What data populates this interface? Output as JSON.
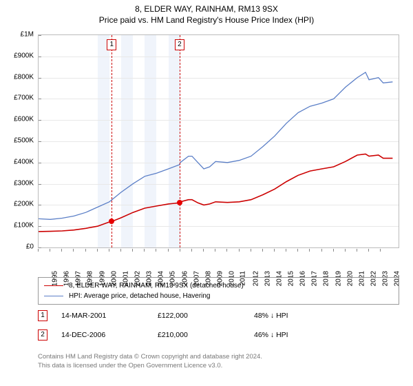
{
  "title_line1": "8, ELDER WAY, RAINHAM, RM13 9SX",
  "title_line2": "Price paid vs. HM Land Registry's House Price Index (HPI)",
  "chart": {
    "type": "line",
    "background_color": "#ffffff",
    "grid_color": "#e8e8e8",
    "axis_color": "#bbbbbb",
    "x_min": 1995,
    "x_max": 2025.5,
    "x_ticks": [
      1995,
      1996,
      1997,
      1998,
      1999,
      2000,
      2001,
      2002,
      2003,
      2004,
      2005,
      2006,
      2007,
      2008,
      2009,
      2010,
      2011,
      2012,
      2013,
      2014,
      2015,
      2016,
      2017,
      2018,
      2019,
      2020,
      2021,
      2022,
      2023,
      2024
    ],
    "y_min": 0,
    "y_max": 1000000,
    "y_ticks": [
      {
        "v": 0,
        "label": "£0"
      },
      {
        "v": 100000,
        "label": "£100K"
      },
      {
        "v": 200000,
        "label": "£200K"
      },
      {
        "v": 300000,
        "label": "£300K"
      },
      {
        "v": 400000,
        "label": "£400K"
      },
      {
        "v": 500000,
        "label": "£500K"
      },
      {
        "v": 600000,
        "label": "£600K"
      },
      {
        "v": 700000,
        "label": "£700K"
      },
      {
        "v": 800000,
        "label": "£800K"
      },
      {
        "v": 900000,
        "label": "£900K"
      },
      {
        "v": 1000000,
        "label": "£1M"
      }
    ],
    "alt_bands": {
      "color": "#f0f4fb",
      "years": [
        2000,
        2002,
        2004,
        2006
      ]
    },
    "series": [
      {
        "name": "price_paid",
        "label": "8, ELDER WAY, RAINHAM, RM13 9SX (detached house)",
        "color": "#cc0000",
        "line_width": 1.6,
        "points": [
          [
            1995,
            75000
          ],
          [
            1996,
            76000
          ],
          [
            1997,
            78000
          ],
          [
            1998,
            82000
          ],
          [
            1999,
            90000
          ],
          [
            2000,
            100000
          ],
          [
            2001,
            120000
          ],
          [
            2001.2,
            122000
          ],
          [
            2002,
            140000
          ],
          [
            2003,
            165000
          ],
          [
            2004,
            185000
          ],
          [
            2005,
            195000
          ],
          [
            2006,
            205000
          ],
          [
            2006.95,
            210000
          ],
          [
            2007,
            215000
          ],
          [
            2007.7,
            225000
          ],
          [
            2008,
            225000
          ],
          [
            2008.5,
            210000
          ],
          [
            2009,
            200000
          ],
          [
            2009.5,
            205000
          ],
          [
            2010,
            215000
          ],
          [
            2011,
            212000
          ],
          [
            2012,
            215000
          ],
          [
            2013,
            225000
          ],
          [
            2014,
            248000
          ],
          [
            2015,
            275000
          ],
          [
            2016,
            310000
          ],
          [
            2017,
            340000
          ],
          [
            2018,
            360000
          ],
          [
            2019,
            370000
          ],
          [
            2020,
            380000
          ],
          [
            2021,
            405000
          ],
          [
            2022,
            435000
          ],
          [
            2022.7,
            440000
          ],
          [
            2023,
            430000
          ],
          [
            2023.8,
            435000
          ],
          [
            2024.2,
            420000
          ],
          [
            2025,
            420000
          ]
        ]
      },
      {
        "name": "hpi",
        "label": "HPI: Average price, detached house, Havering",
        "color": "#5b7fc7",
        "line_width": 1.3,
        "points": [
          [
            1995,
            135000
          ],
          [
            1996,
            132000
          ],
          [
            1997,
            138000
          ],
          [
            1998,
            148000
          ],
          [
            1999,
            165000
          ],
          [
            2000,
            190000
          ],
          [
            2001,
            215000
          ],
          [
            2002,
            260000
          ],
          [
            2003,
            300000
          ],
          [
            2004,
            335000
          ],
          [
            2005,
            350000
          ],
          [
            2006,
            370000
          ],
          [
            2006.95,
            390000
          ],
          [
            2007,
            400000
          ],
          [
            2007.7,
            430000
          ],
          [
            2008,
            430000
          ],
          [
            2008.5,
            400000
          ],
          [
            2009,
            370000
          ],
          [
            2009.5,
            380000
          ],
          [
            2010,
            405000
          ],
          [
            2011,
            400000
          ],
          [
            2012,
            410000
          ],
          [
            2013,
            430000
          ],
          [
            2014,
            475000
          ],
          [
            2015,
            525000
          ],
          [
            2016,
            585000
          ],
          [
            2017,
            635000
          ],
          [
            2018,
            665000
          ],
          [
            2019,
            680000
          ],
          [
            2020,
            700000
          ],
          [
            2021,
            755000
          ],
          [
            2022,
            800000
          ],
          [
            2022.7,
            825000
          ],
          [
            2023,
            790000
          ],
          [
            2023.8,
            800000
          ],
          [
            2024.2,
            775000
          ],
          [
            2025,
            780000
          ]
        ]
      }
    ],
    "sale_markers": [
      {
        "n": "1",
        "x": 2001.2,
        "y": 122000,
        "dash_color": "#cc0000"
      },
      {
        "n": "2",
        "x": 2006.95,
        "y": 210000,
        "dash_color": "#cc0000"
      }
    ],
    "dot_color": "#e60000"
  },
  "legend": {
    "items": [
      {
        "color": "#cc0000",
        "width": 1.6,
        "label": "8, ELDER WAY, RAINHAM, RM13 9SX (detached house)"
      },
      {
        "color": "#5b7fc7",
        "width": 1.3,
        "label": "HPI: Average price, detached house, Havering"
      }
    ]
  },
  "sale_rows": [
    {
      "n": "1",
      "box_color": "#cc0000",
      "date": "14-MAR-2001",
      "price": "£122,000",
      "delta": "48% ↓ HPI"
    },
    {
      "n": "2",
      "box_color": "#cc0000",
      "date": "14-DEC-2006",
      "price": "£210,000",
      "delta": "46% ↓ HPI"
    }
  ],
  "attribution": {
    "line1": "Contains HM Land Registry data © Crown copyright and database right 2024.",
    "line2": "This data is licensed under the Open Government Licence v3.0."
  }
}
